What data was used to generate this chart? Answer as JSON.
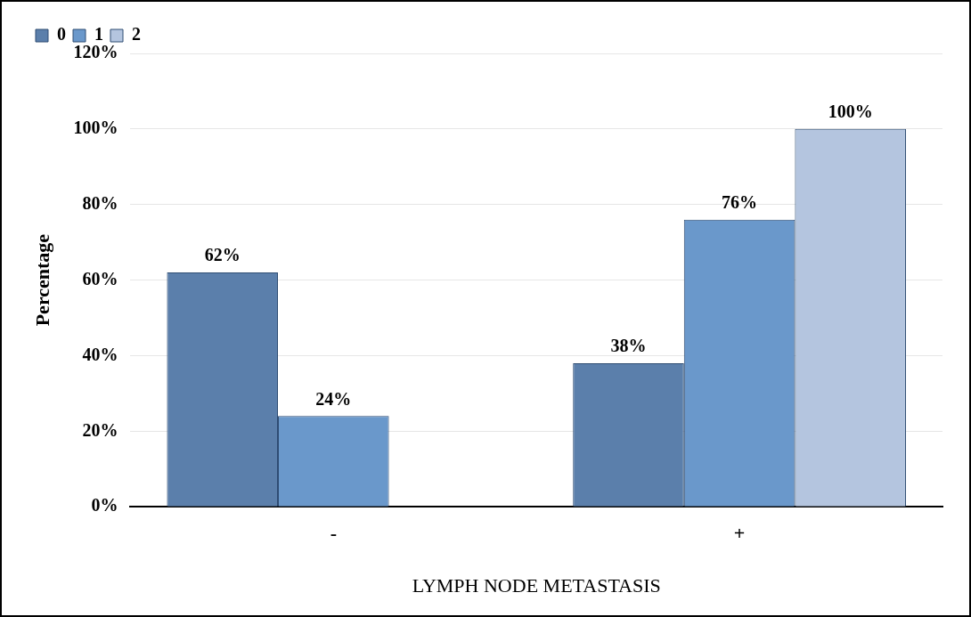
{
  "chart_data": {
    "type": "bar",
    "xlabel": "LYMPH NODE METASTASIS",
    "ylabel": "Percentage",
    "categories": [
      "-",
      "+"
    ],
    "series": [
      {
        "name": "0",
        "color": "#5b7fab",
        "values": [
          62,
          38
        ],
        "value_labels": [
          "62%",
          "38%"
        ]
      },
      {
        "name": "1",
        "color": "#6a98cb",
        "values": [
          24,
          76
        ],
        "value_labels": [
          "24%",
          "76%"
        ]
      },
      {
        "name": "2",
        "color": "#b4c5df",
        "values": [
          null,
          100
        ],
        "value_labels": [
          null,
          "100%"
        ]
      }
    ],
    "ylim": [
      0,
      120
    ],
    "yticks": [
      {
        "value": 0,
        "label": "0%"
      },
      {
        "value": 20,
        "label": "20%"
      },
      {
        "value": 40,
        "label": "40%"
      },
      {
        "value": 60,
        "label": "60%"
      },
      {
        "value": 80,
        "label": "80%"
      },
      {
        "value": 100,
        "label": "100%"
      },
      {
        "value": 120,
        "label": "120%"
      }
    ],
    "grid": "y",
    "legend": "top left"
  }
}
